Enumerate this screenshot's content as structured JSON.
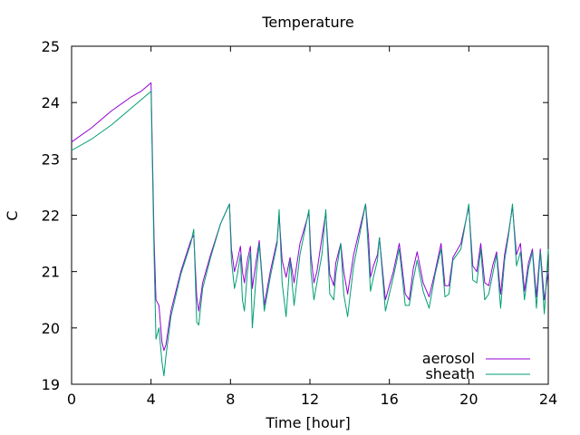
{
  "chart_data": {
    "type": "line",
    "title": "Temperature",
    "xlabel": "Time [hour]",
    "ylabel": "C",
    "xlim": [
      0,
      24
    ],
    "ylim": [
      19,
      25
    ],
    "xticks": [
      "0",
      "4",
      "8",
      "12",
      "16",
      "20",
      "24"
    ],
    "yticks": [
      "19",
      "20",
      "21",
      "22",
      "23",
      "24",
      "25"
    ],
    "grid": false,
    "legend_position": "bottom-right",
    "series": [
      {
        "name": "aerosol",
        "color": "#9400d3",
        "x": [
          0.0,
          1.0,
          2.0,
          3.0,
          3.5,
          4.0,
          4.05,
          4.15,
          4.25,
          4.4,
          4.55,
          4.65,
          4.75,
          5.0,
          5.5,
          6.0,
          6.15,
          6.3,
          6.4,
          6.6,
          7.0,
          7.5,
          7.95,
          8.05,
          8.2,
          8.35,
          8.5,
          8.6,
          8.7,
          8.85,
          9.0,
          9.1,
          9.3,
          9.45,
          9.7,
          10.0,
          10.35,
          10.45,
          10.6,
          10.8,
          11.0,
          11.2,
          11.5,
          11.95,
          12.05,
          12.2,
          12.35,
          12.6,
          12.8,
          13.0,
          13.2,
          13.3,
          13.55,
          13.7,
          13.9,
          14.2,
          14.8,
          14.95,
          15.05,
          15.2,
          15.4,
          15.5,
          15.8,
          16.2,
          16.5,
          16.8,
          17.0,
          17.2,
          17.4,
          17.7,
          18.0,
          18.3,
          18.6,
          18.8,
          19.0,
          19.2,
          19.6,
          20.0,
          20.2,
          20.4,
          20.6,
          20.8,
          21.0,
          21.2,
          21.4,
          21.6,
          21.8,
          22.0,
          22.2,
          22.4,
          22.6,
          22.8,
          23.0,
          23.2,
          23.4,
          23.6,
          23.8,
          24.0
        ],
        "y": [
          23.3,
          23.55,
          23.85,
          24.1,
          24.2,
          24.35,
          23.4,
          21.6,
          20.5,
          20.4,
          19.75,
          19.6,
          19.7,
          20.3,
          21.0,
          21.55,
          21.65,
          20.55,
          20.3,
          20.8,
          21.3,
          21.85,
          22.2,
          21.4,
          21.0,
          21.2,
          21.45,
          21.0,
          20.8,
          21.2,
          21.45,
          20.7,
          21.2,
          21.55,
          20.4,
          21.0,
          21.55,
          22.0,
          21.2,
          20.9,
          21.25,
          20.8,
          21.5,
          22.05,
          21.3,
          20.8,
          21.0,
          21.6,
          22.05,
          20.95,
          20.75,
          21.15,
          21.5,
          21.0,
          20.6,
          21.3,
          22.2,
          21.6,
          20.9,
          21.1,
          21.3,
          21.6,
          20.5,
          21.0,
          21.5,
          20.6,
          20.5,
          21.05,
          21.35,
          20.8,
          20.55,
          21.0,
          21.5,
          20.75,
          20.75,
          21.25,
          21.5,
          22.15,
          21.1,
          21.0,
          21.5,
          20.8,
          20.75,
          21.1,
          21.35,
          20.6,
          21.3,
          21.7,
          22.15,
          21.3,
          21.5,
          20.65,
          21.15,
          21.4,
          20.55,
          21.4,
          20.5,
          21.0
        ]
      },
      {
        "name": "sheath",
        "color": "#009e73",
        "x": [
          0.0,
          1.0,
          2.0,
          3.0,
          3.5,
          4.0,
          4.05,
          4.15,
          4.25,
          4.4,
          4.55,
          4.65,
          4.75,
          5.0,
          5.5,
          6.0,
          6.15,
          6.3,
          6.4,
          6.6,
          7.0,
          7.5,
          7.95,
          8.05,
          8.2,
          8.35,
          8.5,
          8.6,
          8.7,
          8.85,
          9.0,
          9.1,
          9.3,
          9.45,
          9.7,
          10.0,
          10.35,
          10.45,
          10.6,
          10.8,
          11.0,
          11.2,
          11.5,
          11.95,
          12.05,
          12.2,
          12.35,
          12.6,
          12.8,
          13.0,
          13.2,
          13.3,
          13.55,
          13.7,
          13.9,
          14.2,
          14.8,
          14.95,
          15.05,
          15.2,
          15.4,
          15.5,
          15.8,
          16.2,
          16.5,
          16.8,
          17.0,
          17.2,
          17.4,
          17.7,
          18.0,
          18.3,
          18.6,
          18.8,
          19.0,
          19.2,
          19.6,
          20.0,
          20.2,
          20.4,
          20.6,
          20.8,
          21.0,
          21.2,
          21.4,
          21.6,
          21.8,
          22.0,
          22.2,
          22.4,
          22.6,
          22.8,
          23.0,
          23.2,
          23.4,
          23.6,
          23.8,
          24.0
        ],
        "y": [
          23.15,
          23.35,
          23.6,
          23.9,
          24.05,
          24.2,
          23.2,
          21.3,
          19.8,
          20.0,
          19.4,
          19.15,
          19.5,
          20.2,
          20.95,
          21.5,
          21.75,
          20.1,
          20.05,
          20.7,
          21.25,
          21.85,
          22.2,
          21.2,
          20.7,
          20.95,
          21.3,
          20.5,
          20.3,
          21.0,
          21.35,
          20.0,
          20.95,
          21.5,
          20.3,
          20.9,
          21.5,
          22.1,
          20.8,
          20.2,
          21.2,
          20.4,
          21.3,
          22.1,
          21.0,
          20.5,
          20.8,
          21.3,
          22.1,
          20.6,
          20.5,
          20.95,
          21.5,
          20.6,
          20.2,
          21.1,
          22.2,
          21.3,
          20.65,
          20.9,
          21.2,
          21.6,
          20.3,
          20.9,
          21.4,
          20.4,
          20.4,
          20.85,
          21.2,
          20.65,
          20.35,
          20.95,
          21.4,
          20.55,
          20.6,
          21.2,
          21.4,
          22.2,
          20.85,
          20.8,
          21.4,
          20.5,
          20.6,
          20.95,
          21.3,
          20.35,
          21.2,
          21.65,
          22.2,
          21.1,
          21.35,
          20.5,
          21.05,
          21.35,
          20.35,
          21.35,
          20.25,
          21.4
        ]
      }
    ]
  }
}
